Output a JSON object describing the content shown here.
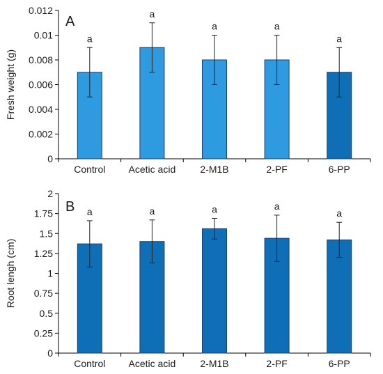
{
  "chart_data": [
    {
      "type": "bar",
      "panel_label": "A",
      "ylabel": "Fresh weight (g)",
      "categories": [
        "Control",
        "Acetic acid",
        "2-M1B",
        "2-PF",
        "6-PP"
      ],
      "values": [
        0.007,
        0.009,
        0.008,
        0.008,
        0.007
      ],
      "errors": [
        0.002,
        0.002,
        0.002,
        0.002,
        0.002
      ],
      "significance": [
        "a",
        "a",
        "a",
        "a",
        "a"
      ],
      "ylim": [
        0,
        0.012
      ],
      "yticks": [
        0,
        0.002,
        0.004,
        0.006,
        0.008,
        0.01,
        0.012
      ],
      "ytick_labels": [
        "0",
        "0.002",
        "0.004",
        "0.006",
        "0.008",
        "0.01",
        "0.012"
      ],
      "bar_colors": [
        "#2e9be0",
        "#2e9be0",
        "#2e9be0",
        "#2e9be0",
        "#0e6fb7"
      ],
      "grid": false
    },
    {
      "type": "bar",
      "panel_label": "B",
      "ylabel": "Root lengh (cm)",
      "categories": [
        "Control",
        "Acetic acid",
        "2-M1B",
        "2-PF",
        "6-PP"
      ],
      "values": [
        1.37,
        1.4,
        1.56,
        1.44,
        1.42
      ],
      "errors": [
        0.29,
        0.27,
        0.13,
        0.29,
        0.22
      ],
      "significance": [
        "a",
        "a",
        "a",
        "a",
        "a"
      ],
      "ylim": [
        0,
        2
      ],
      "yticks": [
        0,
        0.25,
        0.5,
        0.75,
        1,
        1.25,
        1.5,
        1.75,
        2
      ],
      "ytick_labels": [
        "0",
        "0.25",
        "0.5",
        "0.75",
        "1",
        "1.25",
        "1.5",
        "1.75",
        "2"
      ],
      "bar_colors": [
        "#0e6fb7",
        "#0e6fb7",
        "#0e6fb7",
        "#0e6fb7",
        "#0e6fb7"
      ],
      "grid": false
    }
  ]
}
